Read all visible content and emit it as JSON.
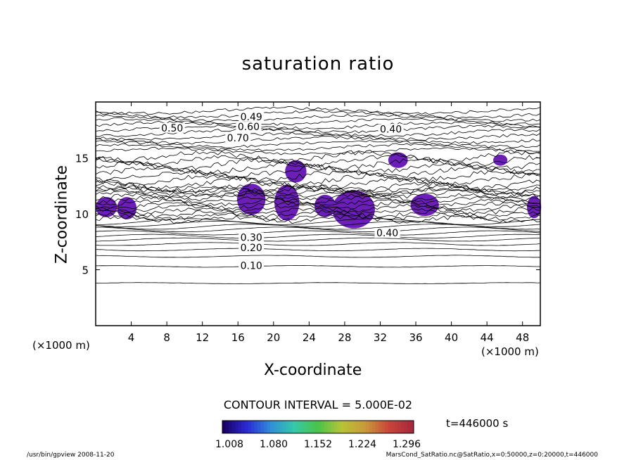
{
  "chart_data": {
    "type": "contour",
    "title": "saturation ratio",
    "xlabel": "X-coordinate",
    "ylabel": "Z-coordinate",
    "x_unit": "(×1000 m)",
    "y_unit": "(×1000 m)",
    "xlim": [
      0,
      50
    ],
    "ylim": [
      0,
      20
    ],
    "x_ticks": [
      4,
      8,
      12,
      16,
      20,
      24,
      28,
      32,
      36,
      40,
      44,
      48
    ],
    "y_ticks": [
      5,
      10,
      15
    ],
    "contour_interval_text": "CONTOUR INTERVAL = 5.000E-02",
    "contour_labels": [
      {
        "text": "0.10",
        "x": 17.5,
        "z": 5.2
      },
      {
        "text": "0.20",
        "x": 17.5,
        "z": 6.8
      },
      {
        "text": "0.30",
        "x": 17.5,
        "z": 7.7
      },
      {
        "text": "0.40",
        "x": 32.8,
        "z": 8.1
      },
      {
        "text": "0.40",
        "x": 33.2,
        "z": 17.4
      },
      {
        "text": "0.50",
        "x": 8.6,
        "z": 17.5
      },
      {
        "text": "0.60",
        "x": 17.2,
        "z": 17.6
      },
      {
        "text": "0.70",
        "x": 16.0,
        "z": 16.6
      },
      {
        "text": "0.49",
        "x": 17.5,
        "z": 18.5
      }
    ],
    "supersaturated_regions_color": "#6b1fb8",
    "colorbar": {
      "ticks": [
        "1.008",
        "1.080",
        "1.152",
        "1.224",
        "1.296"
      ],
      "colors": [
        "#1a0066",
        "#2b2bd6",
        "#2f8fd8",
        "#35c9a8",
        "#49c447",
        "#b7c437",
        "#c99a38",
        "#c9463a",
        "#a8283d"
      ]
    },
    "time_label": "t=446000 s",
    "footer_left": "/usr/bin/gpview   2008-11-20",
    "footer_right": "MarsCond_SatRatio.nc@SatRatio,x=0:50000,z=0:20000,t=446000"
  }
}
